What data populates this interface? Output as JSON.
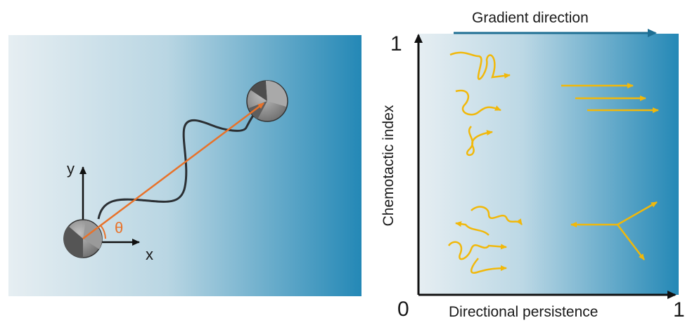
{
  "colors": {
    "gradient_light": "#e6eef2",
    "gradient_dark": "#2488b6",
    "arrow_orange": "#e8722a",
    "path_dark": "#2b2f33",
    "trajectory_yellow": "#f1b80a",
    "gradient_arrow": "#1e6e93"
  },
  "left_panel": {
    "axis_x_label": "x",
    "axis_y_label": "y",
    "angle_label": "θ"
  },
  "right_panel": {
    "gradient_label": "Gradient direction",
    "y_axis_label": "Chemotactic index",
    "x_axis_label": "Directional persistence",
    "y_max_tick": "1",
    "origin_tick": "0",
    "x_max_tick": "1"
  }
}
